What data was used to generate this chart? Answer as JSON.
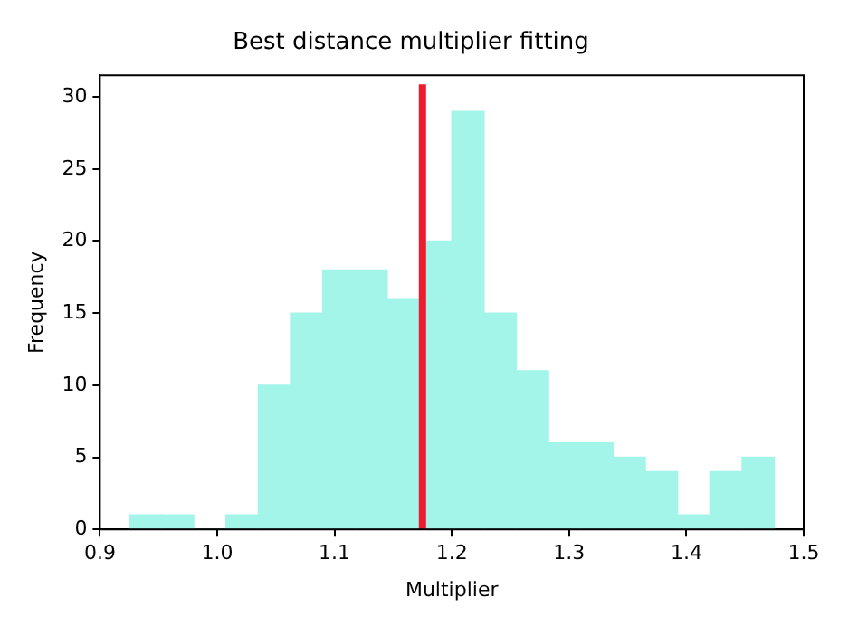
{
  "chart_data": {
    "type": "histogram",
    "title": "Best distance multiplier fitting",
    "xlabel": "Multiplier",
    "ylabel": "Frequency",
    "bins": [
      0.925,
      0.9525,
      0.98,
      1.0075,
      1.035,
      1.0625,
      1.09,
      1.1175,
      1.145,
      1.1725,
      1.2,
      1.2275,
      1.255,
      1.2825,
      1.31,
      1.3375,
      1.365,
      1.3925,
      1.42,
      1.4475,
      1.475
    ],
    "values": [
      1,
      1,
      0,
      1,
      10,
      15,
      18,
      18,
      16,
      20,
      29,
      15,
      11,
      6,
      6,
      5,
      4,
      1,
      4,
      5
    ],
    "color": "#a2f5e8",
    "xlim": [
      0.9,
      1.5
    ],
    "xticks": [
      {
        "value": 0.9,
        "label": "0.9"
      },
      {
        "value": 1.0,
        "label": "1.0"
      },
      {
        "value": 1.1,
        "label": "1.1"
      },
      {
        "value": 1.2,
        "label": "1.2"
      },
      {
        "value": 1.3,
        "label": "1.3"
      },
      {
        "value": 1.4,
        "label": "1.4"
      },
      {
        "value": 1.5,
        "label": "1.5"
      }
    ],
    "ylim": [
      0,
      31.5
    ],
    "yticks": [
      0,
      5,
      10,
      15,
      20,
      25,
      30
    ],
    "ref_lines": [
      {
        "axis": "x",
        "value": 1.175,
        "color": "#ee1c2e"
      }
    ],
    "grid": false,
    "legend": false
  }
}
